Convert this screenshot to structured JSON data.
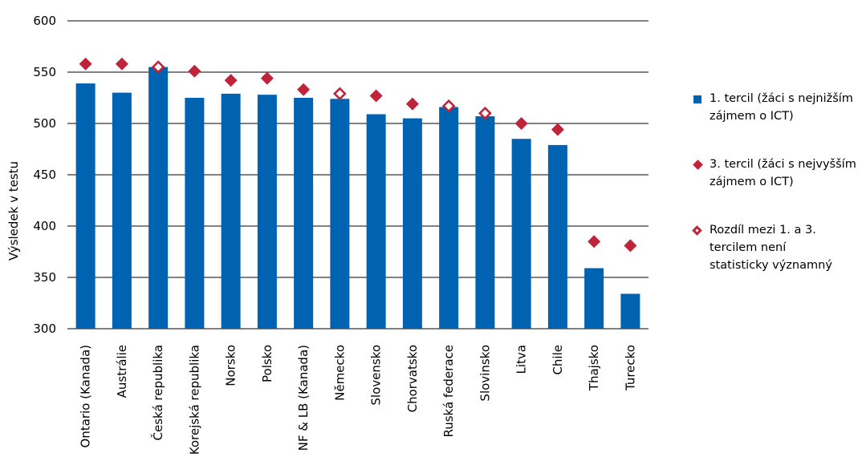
{
  "chart_data": {
    "type": "bar",
    "ylabel": "Výsledek v testu",
    "ylim": [
      300,
      600
    ],
    "yticks": [
      300,
      350,
      400,
      450,
      500,
      550,
      600
    ],
    "grid": true,
    "legend_position": "right",
    "colors": {
      "bar": "#0063b1",
      "marker": "#c0243a",
      "highlight_label": "#c0243a"
    },
    "highlight_category": "Česká republika",
    "categories": [
      "Ontario (Kanada)",
      "Austrálie",
      "Česká republika",
      "Korejská republika",
      "Norsko",
      "Polsko",
      "NF & LB (Kanada)",
      "Německo",
      "Slovensko",
      "Chorvatsko",
      "Ruská federace",
      "Slovinsko",
      "Litva",
      "Chile",
      "Thajsko",
      "Turecko"
    ],
    "series": [
      {
        "name": "1. tercil (žáci s nejnižším zájmem o ICT)",
        "kind": "bar",
        "values": [
          539,
          530,
          555,
          525,
          529,
          528,
          525,
          524,
          509,
          505,
          516,
          507,
          485,
          479,
          359,
          334
        ]
      },
      {
        "name": "3. tercil (žáci s nejvyšším zájmem o ICT)",
        "kind": "diamond",
        "values": [
          558,
          558,
          555,
          551,
          542,
          544,
          533,
          529,
          527,
          519,
          517,
          510,
          500,
          494,
          385,
          381
        ],
        "not_significant": [
          false,
          false,
          true,
          false,
          false,
          false,
          false,
          true,
          false,
          false,
          true,
          true,
          false,
          false,
          false,
          false
        ]
      }
    ],
    "legend": {
      "bar": [
        "1. tercil (žáci s nejnižším",
        "zájmem o ICT)"
      ],
      "filled": [
        "3. tercil (žáci s nejvyšším",
        "zájmem o ICT)"
      ],
      "hollow": [
        "Rozdíl mezi 1. a 3.",
        "tercilem není",
        "statisticky významný"
      ]
    }
  }
}
